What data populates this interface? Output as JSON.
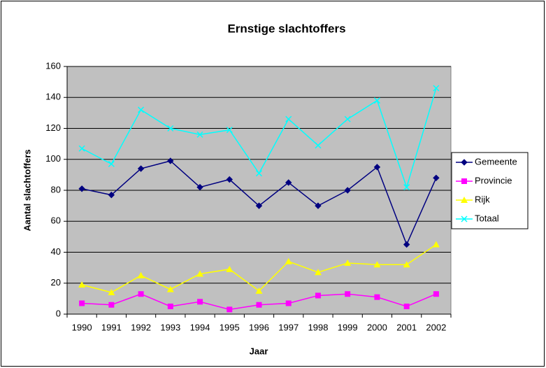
{
  "chart_data": {
    "type": "line",
    "title": "Ernstige slachtoffers",
    "xlabel": "Jaar",
    "ylabel": "Aantal slachtoffers",
    "categories": [
      "1990",
      "1991",
      "1992",
      "1993",
      "1994",
      "1995",
      "1996",
      "1997",
      "1998",
      "1999",
      "2000",
      "2001",
      "2002"
    ],
    "series": [
      {
        "name": "Gemeente",
        "color": "#000080",
        "marker": "diamond",
        "values": [
          81,
          77,
          94,
          99,
          82,
          87,
          70,
          85,
          70,
          80,
          95,
          45,
          88
        ]
      },
      {
        "name": "Provincie",
        "color": "#ff00ff",
        "marker": "square",
        "values": [
          7,
          6,
          13,
          5,
          8,
          3,
          6,
          7,
          12,
          13,
          11,
          5,
          13
        ]
      },
      {
        "name": "Rijk",
        "color": "#ffff00",
        "marker": "triangle",
        "values": [
          19,
          14,
          25,
          16,
          26,
          29,
          15,
          34,
          27,
          33,
          32,
          32,
          45
        ]
      },
      {
        "name": "Totaal",
        "color": "#00ffff",
        "marker": "x",
        "values": [
          107,
          97,
          132,
          120,
          116,
          119,
          91,
          126,
          109,
          126,
          138,
          82,
          146
        ]
      }
    ],
    "ylim": [
      0,
      160
    ],
    "yticks": [
      0,
      20,
      40,
      60,
      80,
      100,
      120,
      140,
      160
    ],
    "grid": true,
    "legend": "right",
    "plot_background": "#c0c0c0"
  }
}
